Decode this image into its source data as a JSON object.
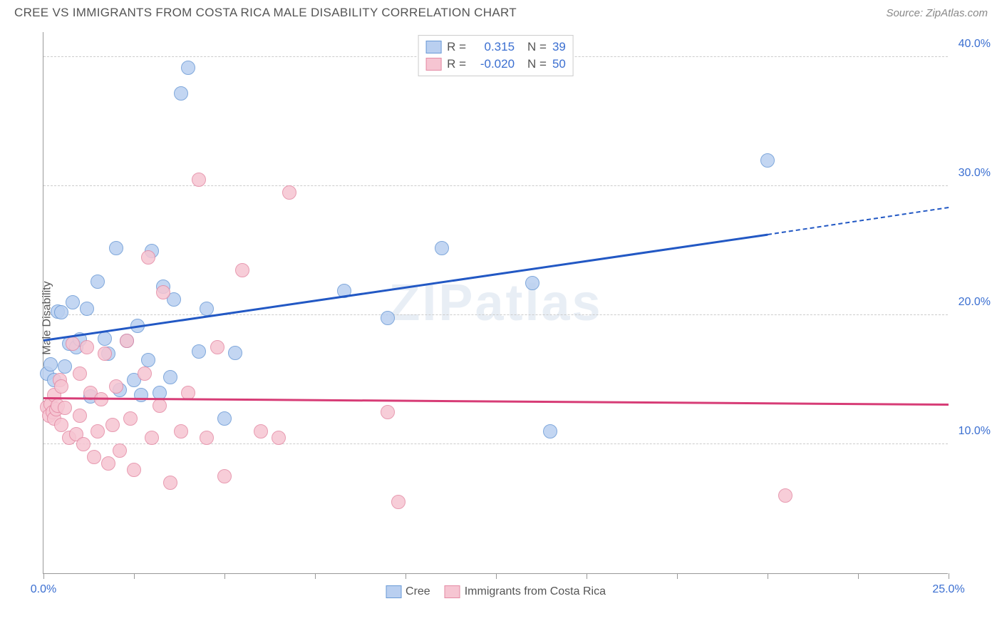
{
  "title": "CREE VS IMMIGRANTS FROM COSTA RICA MALE DISABILITY CORRELATION CHART",
  "source": "Source: ZipAtlas.com",
  "ylabel": "Male Disability",
  "watermark": "ZIPatlas",
  "chart": {
    "type": "scatter",
    "xlim": [
      0,
      25
    ],
    "ylim": [
      0,
      42
    ],
    "background_color": "#ffffff",
    "grid_color": "#cccccc",
    "axis_color": "#999999",
    "ytick_positions": [
      10,
      20,
      30,
      40
    ],
    "ytick_labels": [
      "10.0%",
      "20.0%",
      "30.0%",
      "40.0%"
    ],
    "ytick_color": "#3b6fd1",
    "xtick_positions": [
      0,
      2.5,
      5,
      7.5,
      10,
      12.5,
      15,
      17.5,
      20,
      22.5,
      25
    ],
    "xtick_label_positions": [
      0,
      25
    ],
    "xtick_labels": [
      "0.0%",
      "25.0%"
    ],
    "xtick_color": "#3b6fd1",
    "marker_radius": 10,
    "series": [
      {
        "name": "Cree",
        "fill": "#b9cff0",
        "stroke": "#6a9ad6",
        "R": "0.315",
        "N": "39",
        "trend_color": "#2258c4",
        "trend_x0": 0,
        "trend_y0": 18.0,
        "trend_x1": 20,
        "trend_y1": 26.2,
        "trend_dash_x1": 25,
        "trend_dash_y1": 28.3,
        "points": [
          [
            0.1,
            15.5
          ],
          [
            0.2,
            16.2
          ],
          [
            0.3,
            15.0
          ],
          [
            0.4,
            20.3
          ],
          [
            0.5,
            20.2
          ],
          [
            0.6,
            16.0
          ],
          [
            0.7,
            17.8
          ],
          [
            0.8,
            21.0
          ],
          [
            0.9,
            17.5
          ],
          [
            1.0,
            18.1
          ],
          [
            1.2,
            20.5
          ],
          [
            1.3,
            13.7
          ],
          [
            1.5,
            22.6
          ],
          [
            1.7,
            18.2
          ],
          [
            1.8,
            17.0
          ],
          [
            2.0,
            25.2
          ],
          [
            2.1,
            14.2
          ],
          [
            2.3,
            18.0
          ],
          [
            2.5,
            15.0
          ],
          [
            2.6,
            19.2
          ],
          [
            2.7,
            13.8
          ],
          [
            2.9,
            16.5
          ],
          [
            3.0,
            25.0
          ],
          [
            3.2,
            14.0
          ],
          [
            3.3,
            22.2
          ],
          [
            3.5,
            15.2
          ],
          [
            3.6,
            21.2
          ],
          [
            3.8,
            37.2
          ],
          [
            4.0,
            39.2
          ],
          [
            4.3,
            17.2
          ],
          [
            4.5,
            20.5
          ],
          [
            5.0,
            12.0
          ],
          [
            5.3,
            17.1
          ],
          [
            8.3,
            21.9
          ],
          [
            9.5,
            19.8
          ],
          [
            11.0,
            25.2
          ],
          [
            13.5,
            22.5
          ],
          [
            14.0,
            11.0
          ],
          [
            20.0,
            32.0
          ]
        ]
      },
      {
        "name": "Immigrants from Costa Rica",
        "fill": "#f6c5d2",
        "stroke": "#e48aa4",
        "R": "-0.020",
        "N": "50",
        "trend_color": "#d73c76",
        "trend_x0": 0,
        "trend_y0": 13.5,
        "trend_x1": 25,
        "trend_y1": 13.0,
        "points": [
          [
            0.1,
            12.9
          ],
          [
            0.15,
            12.2
          ],
          [
            0.2,
            13.1
          ],
          [
            0.25,
            12.5
          ],
          [
            0.3,
            12.0
          ],
          [
            0.3,
            13.8
          ],
          [
            0.35,
            12.7
          ],
          [
            0.4,
            13.0
          ],
          [
            0.45,
            15.0
          ],
          [
            0.5,
            11.5
          ],
          [
            0.5,
            14.5
          ],
          [
            0.6,
            12.8
          ],
          [
            0.7,
            10.5
          ],
          [
            0.8,
            17.8
          ],
          [
            0.9,
            10.8
          ],
          [
            1.0,
            12.2
          ],
          [
            1.0,
            15.5
          ],
          [
            1.1,
            10.0
          ],
          [
            1.2,
            17.5
          ],
          [
            1.3,
            14.0
          ],
          [
            1.4,
            9.0
          ],
          [
            1.5,
            11.0
          ],
          [
            1.6,
            13.5
          ],
          [
            1.7,
            17.0
          ],
          [
            1.8,
            8.5
          ],
          [
            1.9,
            11.5
          ],
          [
            2.0,
            14.5
          ],
          [
            2.1,
            9.5
          ],
          [
            2.3,
            18.0
          ],
          [
            2.4,
            12.0
          ],
          [
            2.5,
            8.0
          ],
          [
            2.8,
            15.5
          ],
          [
            2.9,
            24.5
          ],
          [
            3.0,
            10.5
          ],
          [
            3.2,
            13.0
          ],
          [
            3.3,
            21.8
          ],
          [
            3.5,
            7.0
          ],
          [
            3.8,
            11.0
          ],
          [
            4.0,
            14.0
          ],
          [
            4.3,
            30.5
          ],
          [
            4.5,
            10.5
          ],
          [
            4.8,
            17.5
          ],
          [
            5.0,
            7.5
          ],
          [
            5.5,
            23.5
          ],
          [
            6.0,
            11.0
          ],
          [
            6.5,
            10.5
          ],
          [
            6.8,
            29.5
          ],
          [
            9.5,
            12.5
          ],
          [
            9.8,
            5.5
          ],
          [
            20.5,
            6.0
          ]
        ]
      }
    ]
  },
  "legend_top": {
    "r_label": "R =",
    "n_label": "N =",
    "text_color": "#555555",
    "value_color": "#3b6fd1"
  },
  "legend_bottom": {
    "items": [
      "Cree",
      "Immigrants from Costa Rica"
    ]
  }
}
